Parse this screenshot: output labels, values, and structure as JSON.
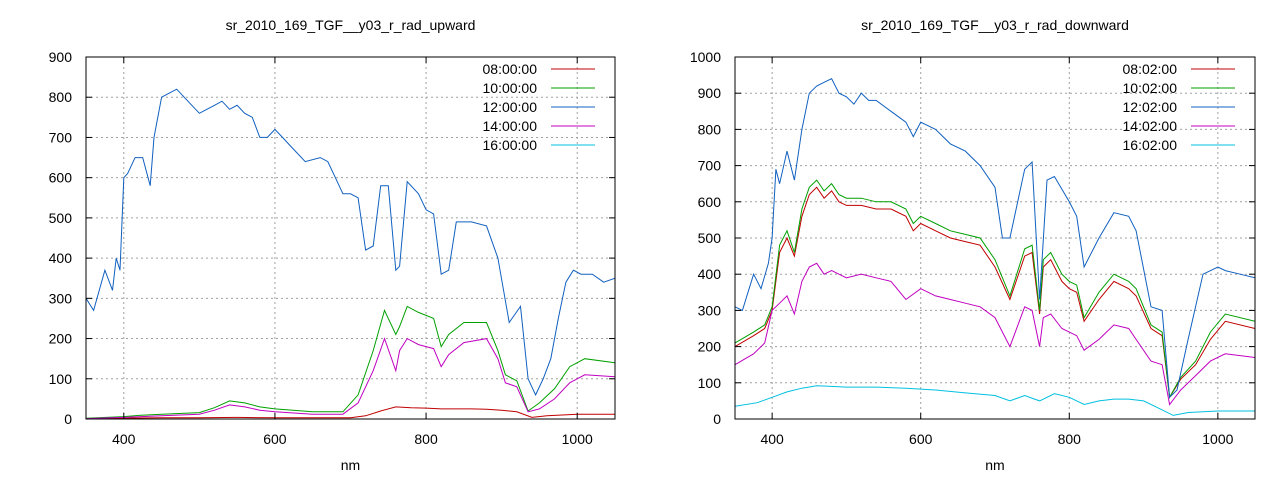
{
  "chart_data": [
    {
      "type": "line",
      "title": "sr_2010_169_TGF__y03_r_rad_upward",
      "xlabel": "nm",
      "ylabel": "",
      "xlim": [
        350,
        1050
      ],
      "ylim": [
        0,
        900
      ],
      "xticks": [
        400,
        600,
        800,
        1000
      ],
      "yticks": [
        0,
        100,
        200,
        300,
        400,
        500,
        600,
        700,
        800,
        900
      ],
      "grid": true,
      "legend_position": "top-right",
      "series": [
        {
          "name": "08:00:00",
          "color": "#c00000",
          "x": [
            350,
            400,
            450,
            500,
            550,
            600,
            650,
            700,
            720,
            740,
            760,
            780,
            800,
            820,
            840,
            860,
            880,
            900,
            920,
            940,
            960,
            980,
            1000,
            1050
          ],
          "y": [
            1,
            2,
            3,
            3,
            4,
            3,
            3,
            3,
            8,
            20,
            30,
            28,
            27,
            25,
            25,
            25,
            24,
            22,
            18,
            4,
            8,
            10,
            12,
            12
          ]
        },
        {
          "name": "10:00:00",
          "color": "#00a000",
          "x": [
            350,
            400,
            420,
            450,
            500,
            520,
            540,
            560,
            580,
            600,
            650,
            690,
            710,
            730,
            745,
            760,
            765,
            775,
            790,
            810,
            820,
            830,
            850,
            880,
            895,
            905,
            920,
            935,
            950,
            970,
            990,
            1010,
            1050
          ],
          "y": [
            2,
            6,
            9,
            12,
            16,
            28,
            45,
            40,
            30,
            25,
            18,
            18,
            60,
            170,
            270,
            210,
            230,
            280,
            265,
            250,
            180,
            210,
            240,
            240,
            170,
            110,
            95,
            20,
            40,
            75,
            130,
            150,
            140
          ]
        },
        {
          "name": "12:00:00",
          "color": "#1060c0",
          "x": [
            350,
            360,
            375,
            385,
            390,
            395,
            400,
            405,
            415,
            425,
            435,
            440,
            450,
            460,
            470,
            480,
            490,
            500,
            510,
            520,
            530,
            540,
            550,
            560,
            570,
            580,
            590,
            600,
            610,
            620,
            640,
            660,
            670,
            680,
            690,
            700,
            710,
            720,
            730,
            740,
            750,
            760,
            765,
            775,
            790,
            800,
            810,
            820,
            830,
            840,
            860,
            880,
            895,
            910,
            925,
            935,
            945,
            955,
            965,
            975,
            985,
            995,
            1005,
            1020,
            1035,
            1050
          ],
          "y": [
            300,
            270,
            370,
            320,
            400,
            370,
            600,
            610,
            650,
            650,
            580,
            700,
            800,
            810,
            820,
            800,
            780,
            760,
            770,
            780,
            790,
            770,
            780,
            760,
            750,
            700,
            700,
            720,
            700,
            680,
            640,
            650,
            640,
            600,
            560,
            560,
            550,
            420,
            430,
            580,
            580,
            370,
            380,
            590,
            560,
            520,
            510,
            360,
            370,
            490,
            490,
            480,
            400,
            240,
            280,
            100,
            60,
            100,
            150,
            250,
            340,
            370,
            360,
            360,
            340,
            350
          ]
        },
        {
          "name": "14:00:00",
          "color": "#c000c0",
          "x": [
            350,
            400,
            450,
            500,
            520,
            540,
            560,
            580,
            600,
            650,
            690,
            710,
            730,
            745,
            760,
            765,
            775,
            790,
            810,
            820,
            830,
            850,
            880,
            895,
            905,
            920,
            935,
            950,
            970,
            990,
            1010,
            1050
          ],
          "y": [
            1,
            4,
            8,
            12,
            22,
            35,
            30,
            22,
            18,
            12,
            12,
            40,
            120,
            200,
            120,
            170,
            200,
            185,
            175,
            130,
            160,
            190,
            200,
            150,
            90,
            80,
            18,
            25,
            50,
            90,
            110,
            105
          ]
        },
        {
          "name": "16:00:00",
          "color": "#00c0e0",
          "x": [
            350,
            1050
          ],
          "y": [
            0,
            0
          ]
        }
      ]
    },
    {
      "type": "line",
      "title": "sr_2010_169_TGF__y03_r_rad_downward",
      "xlabel": "nm",
      "ylabel": "",
      "xlim": [
        350,
        1050
      ],
      "ylim": [
        0,
        1000
      ],
      "xticks": [
        400,
        600,
        800,
        1000
      ],
      "yticks": [
        0,
        100,
        200,
        300,
        400,
        500,
        600,
        700,
        800,
        900,
        1000
      ],
      "grid": true,
      "legend_position": "top-right",
      "series": [
        {
          "name": "08:02:00",
          "color": "#c00000",
          "x": [
            350,
            375,
            390,
            400,
            410,
            420,
            430,
            440,
            450,
            460,
            470,
            480,
            490,
            500,
            520,
            540,
            560,
            580,
            590,
            600,
            620,
            640,
            660,
            680,
            700,
            720,
            740,
            750,
            760,
            765,
            775,
            790,
            800,
            810,
            820,
            840,
            860,
            880,
            890,
            910,
            925,
            935,
            950,
            970,
            990,
            1010,
            1050
          ],
          "y": [
            200,
            230,
            250,
            300,
            460,
            500,
            450,
            560,
            620,
            640,
            610,
            630,
            600,
            590,
            590,
            580,
            580,
            560,
            520,
            540,
            520,
            500,
            490,
            480,
            420,
            330,
            450,
            460,
            290,
            420,
            440,
            380,
            360,
            350,
            270,
            330,
            380,
            360,
            340,
            250,
            230,
            60,
            110,
            150,
            220,
            270,
            250
          ]
        },
        {
          "name": "10:02:00",
          "color": "#00a000",
          "x": [
            350,
            375,
            390,
            400,
            410,
            420,
            430,
            440,
            450,
            460,
            470,
            480,
            490,
            500,
            520,
            540,
            560,
            580,
            590,
            600,
            620,
            640,
            660,
            680,
            700,
            720,
            740,
            750,
            760,
            765,
            775,
            790,
            800,
            810,
            820,
            840,
            860,
            880,
            890,
            910,
            925,
            935,
            950,
            970,
            990,
            1010,
            1050
          ],
          "y": [
            210,
            240,
            260,
            310,
            480,
            520,
            460,
            580,
            640,
            660,
            630,
            650,
            620,
            610,
            610,
            600,
            600,
            580,
            540,
            560,
            540,
            520,
            510,
            500,
            440,
            340,
            470,
            480,
            300,
            440,
            460,
            400,
            380,
            370,
            280,
            350,
            400,
            380,
            360,
            260,
            240,
            60,
            115,
            160,
            240,
            290,
            270
          ]
        },
        {
          "name": "12:02:00",
          "color": "#1060c0",
          "x": [
            350,
            360,
            375,
            385,
            395,
            400,
            405,
            410,
            420,
            430,
            440,
            450,
            460,
            470,
            480,
            490,
            500,
            510,
            520,
            530,
            540,
            560,
            580,
            590,
            600,
            620,
            640,
            660,
            670,
            680,
            700,
            710,
            720,
            740,
            750,
            760,
            770,
            780,
            800,
            810,
            820,
            840,
            860,
            880,
            890,
            910,
            925,
            935,
            945,
            960,
            980,
            1000,
            1010,
            1030,
            1050
          ],
          "y": [
            310,
            300,
            400,
            360,
            430,
            500,
            690,
            650,
            740,
            660,
            800,
            900,
            920,
            930,
            940,
            900,
            890,
            870,
            900,
            880,
            880,
            850,
            820,
            780,
            820,
            800,
            760,
            740,
            720,
            700,
            640,
            500,
            500,
            690,
            710,
            330,
            660,
            670,
            600,
            560,
            420,
            500,
            570,
            560,
            520,
            310,
            300,
            60,
            80,
            220,
            400,
            420,
            410,
            400,
            390
          ]
        },
        {
          "name": "14:02:00",
          "color": "#c000c0",
          "x": [
            350,
            375,
            390,
            400,
            410,
            420,
            430,
            440,
            450,
            460,
            470,
            480,
            490,
            500,
            520,
            540,
            560,
            580,
            600,
            620,
            640,
            660,
            680,
            700,
            720,
            740,
            750,
            760,
            765,
            775,
            790,
            800,
            810,
            820,
            840,
            860,
            880,
            890,
            910,
            925,
            935,
            950,
            970,
            990,
            1010,
            1050
          ],
          "y": [
            150,
            180,
            210,
            300,
            320,
            340,
            290,
            380,
            420,
            430,
            400,
            410,
            400,
            390,
            400,
            390,
            380,
            330,
            360,
            340,
            330,
            320,
            310,
            280,
            200,
            310,
            300,
            200,
            280,
            290,
            250,
            240,
            230,
            190,
            220,
            260,
            250,
            220,
            160,
            150,
            40,
            80,
            120,
            160,
            180,
            170
          ]
        },
        {
          "name": "16:02:00",
          "color": "#00c0e0",
          "x": [
            350,
            380,
            400,
            420,
            440,
            460,
            480,
            500,
            540,
            580,
            620,
            660,
            700,
            720,
            740,
            760,
            780,
            800,
            820,
            840,
            860,
            880,
            900,
            920,
            940,
            960,
            1000,
            1050
          ],
          "y": [
            35,
            45,
            60,
            75,
            85,
            92,
            90,
            88,
            88,
            85,
            80,
            72,
            65,
            50,
            65,
            50,
            70,
            60,
            40,
            50,
            55,
            55,
            50,
            30,
            10,
            18,
            22,
            22
          ]
        }
      ]
    }
  ]
}
